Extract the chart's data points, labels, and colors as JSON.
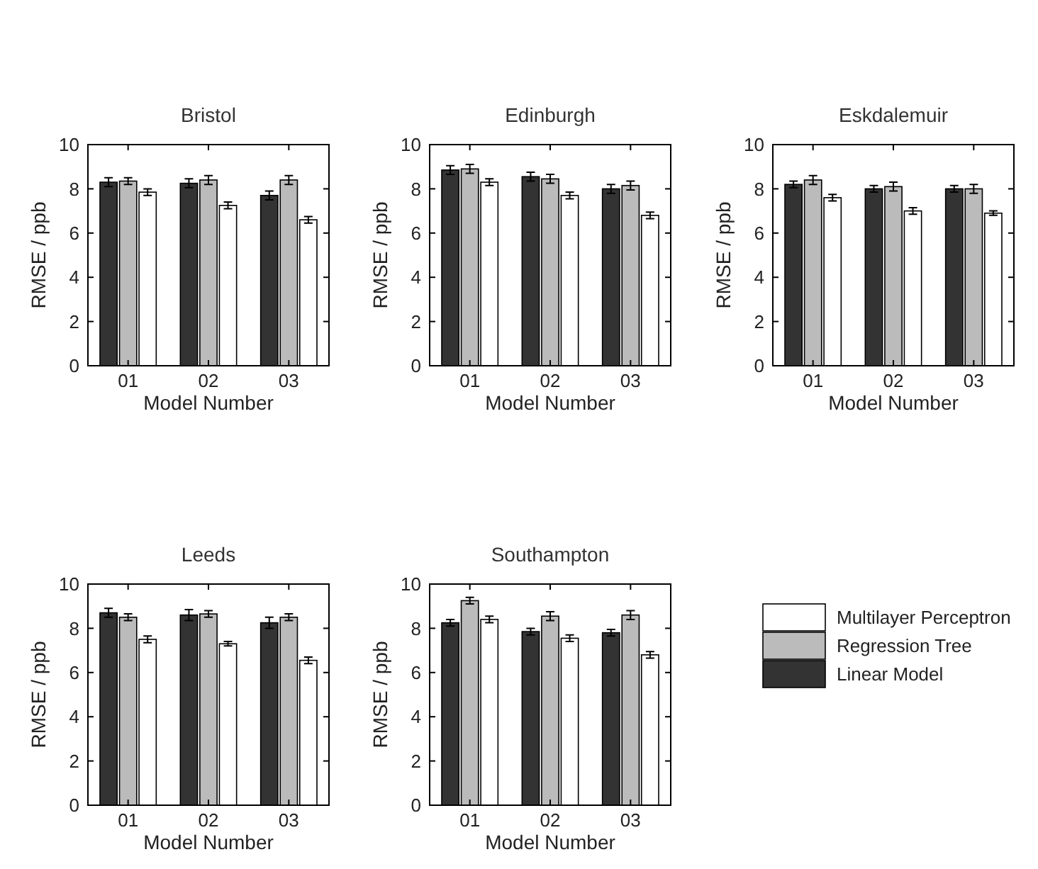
{
  "chart_data": [
    {
      "type": "bar",
      "title": "Bristol",
      "xlabel": "Model Number",
      "ylabel": "RMSE / ppb",
      "categories": [
        "01",
        "02",
        "03"
      ],
      "ylim": [
        0,
        10
      ],
      "yticks": [
        0,
        2,
        4,
        6,
        8,
        10
      ],
      "legend": false,
      "series": [
        {
          "color": "#333333",
          "values": [
            8.3,
            8.25,
            7.7
          ],
          "errors": [
            0.2,
            0.2,
            0.2
          ]
        },
        {
          "color": "#bbbbbb",
          "values": [
            8.35,
            8.4,
            8.4
          ],
          "errors": [
            0.15,
            0.2,
            0.2
          ]
        },
        {
          "color": "#ffffff",
          "values": [
            7.85,
            7.25,
            6.6
          ],
          "errors": [
            0.15,
            0.15,
            0.15
          ]
        }
      ]
    },
    {
      "type": "bar",
      "title": "Edinburgh",
      "xlabel": "Model Number",
      "ylabel": "RMSE / ppb",
      "categories": [
        "01",
        "02",
        "03"
      ],
      "ylim": [
        0,
        10
      ],
      "yticks": [
        0,
        2,
        4,
        6,
        8,
        10
      ],
      "legend": false,
      "series": [
        {
          "color": "#333333",
          "values": [
            8.85,
            8.55,
            8.0
          ],
          "errors": [
            0.2,
            0.2,
            0.2
          ]
        },
        {
          "color": "#bbbbbb",
          "values": [
            8.9,
            8.45,
            8.15
          ],
          "errors": [
            0.2,
            0.2,
            0.2
          ]
        },
        {
          "color": "#ffffff",
          "values": [
            8.3,
            7.7,
            6.8
          ],
          "errors": [
            0.15,
            0.15,
            0.15
          ]
        }
      ]
    },
    {
      "type": "bar",
      "title": "Eskdalemuir",
      "xlabel": "Model Number",
      "ylabel": "RMSE / ppb",
      "categories": [
        "01",
        "02",
        "03"
      ],
      "ylim": [
        0,
        10
      ],
      "yticks": [
        0,
        2,
        4,
        6,
        8,
        10
      ],
      "legend": false,
      "series": [
        {
          "color": "#333333",
          "values": [
            8.2,
            8.0,
            8.0
          ],
          "errors": [
            0.15,
            0.15,
            0.15
          ]
        },
        {
          "color": "#bbbbbb",
          "values": [
            8.4,
            8.1,
            8.0
          ],
          "errors": [
            0.2,
            0.2,
            0.2
          ]
        },
        {
          "color": "#ffffff",
          "values": [
            7.6,
            7.0,
            6.9
          ],
          "errors": [
            0.15,
            0.15,
            0.1
          ]
        }
      ]
    },
    {
      "type": "bar",
      "title": "Leeds",
      "xlabel": "Model Number",
      "ylabel": "RMSE / ppb",
      "categories": [
        "01",
        "02",
        "03"
      ],
      "ylim": [
        0,
        10
      ],
      "yticks": [
        0,
        2,
        4,
        6,
        8,
        10
      ],
      "legend": false,
      "series": [
        {
          "color": "#333333",
          "values": [
            8.7,
            8.6,
            8.25
          ],
          "errors": [
            0.2,
            0.25,
            0.25
          ]
        },
        {
          "color": "#bbbbbb",
          "values": [
            8.5,
            8.65,
            8.5
          ],
          "errors": [
            0.15,
            0.15,
            0.15
          ]
        },
        {
          "color": "#ffffff",
          "values": [
            7.5,
            7.3,
            6.55
          ],
          "errors": [
            0.15,
            0.1,
            0.15
          ]
        }
      ]
    },
    {
      "type": "bar",
      "title": "Southampton",
      "xlabel": "Model Number",
      "ylabel": "RMSE / ppb",
      "categories": [
        "01",
        "02",
        "03"
      ],
      "ylim": [
        0,
        10
      ],
      "yticks": [
        0,
        2,
        4,
        6,
        8,
        10
      ],
      "legend": "right",
      "series": [
        {
          "name": "Linear Model",
          "color": "#333333",
          "values": [
            8.25,
            7.85,
            7.8
          ],
          "errors": [
            0.15,
            0.15,
            0.15
          ]
        },
        {
          "name": "Regression Tree",
          "color": "#bbbbbb",
          "values": [
            9.25,
            8.55,
            8.6
          ],
          "errors": [
            0.15,
            0.2,
            0.2
          ]
        },
        {
          "name": "Multilayer Perceptron",
          "color": "#ffffff",
          "values": [
            8.4,
            7.55,
            6.8
          ],
          "errors": [
            0.15,
            0.15,
            0.15
          ]
        }
      ]
    }
  ]
}
